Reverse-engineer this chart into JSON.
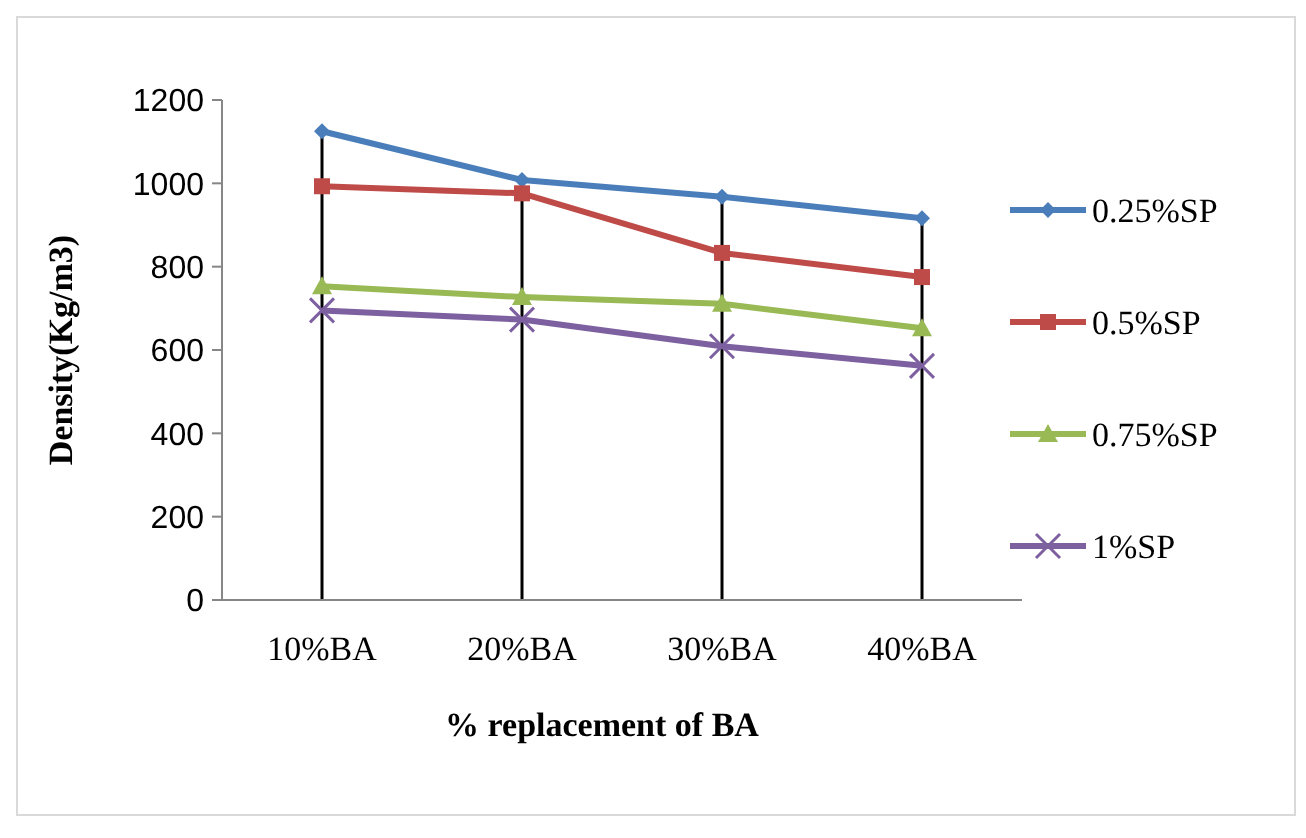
{
  "chart_data": {
    "type": "line",
    "xlabel": "% replacement of BA",
    "ylabel": "Density(Kg/m3)",
    "categories": [
      "10%BA",
      "20%BA",
      "30%BA",
      "40%BA"
    ],
    "ylim": [
      0,
      1200
    ],
    "yticks": [
      0,
      200,
      400,
      600,
      800,
      1000,
      1200
    ],
    "grid": "x",
    "legend": "right",
    "line_style": "solid",
    "series": [
      {
        "name": "0.25%SP",
        "color": "#4a7ebb",
        "marker": "diamond",
        "values": [
          1125,
          1008,
          968,
          916
        ]
      },
      {
        "name": "0.5%SP",
        "color": "#be4b48",
        "marker": "square",
        "values": [
          993,
          976,
          833,
          775
        ]
      },
      {
        "name": "0.75%SP",
        "color": "#98b954",
        "marker": "triangle",
        "values": [
          753,
          727,
          711,
          652
        ]
      },
      {
        "name": "1%SP",
        "color": "#7d60a0",
        "marker": "cross",
        "values": [
          695,
          673,
          609,
          562
        ]
      }
    ]
  }
}
